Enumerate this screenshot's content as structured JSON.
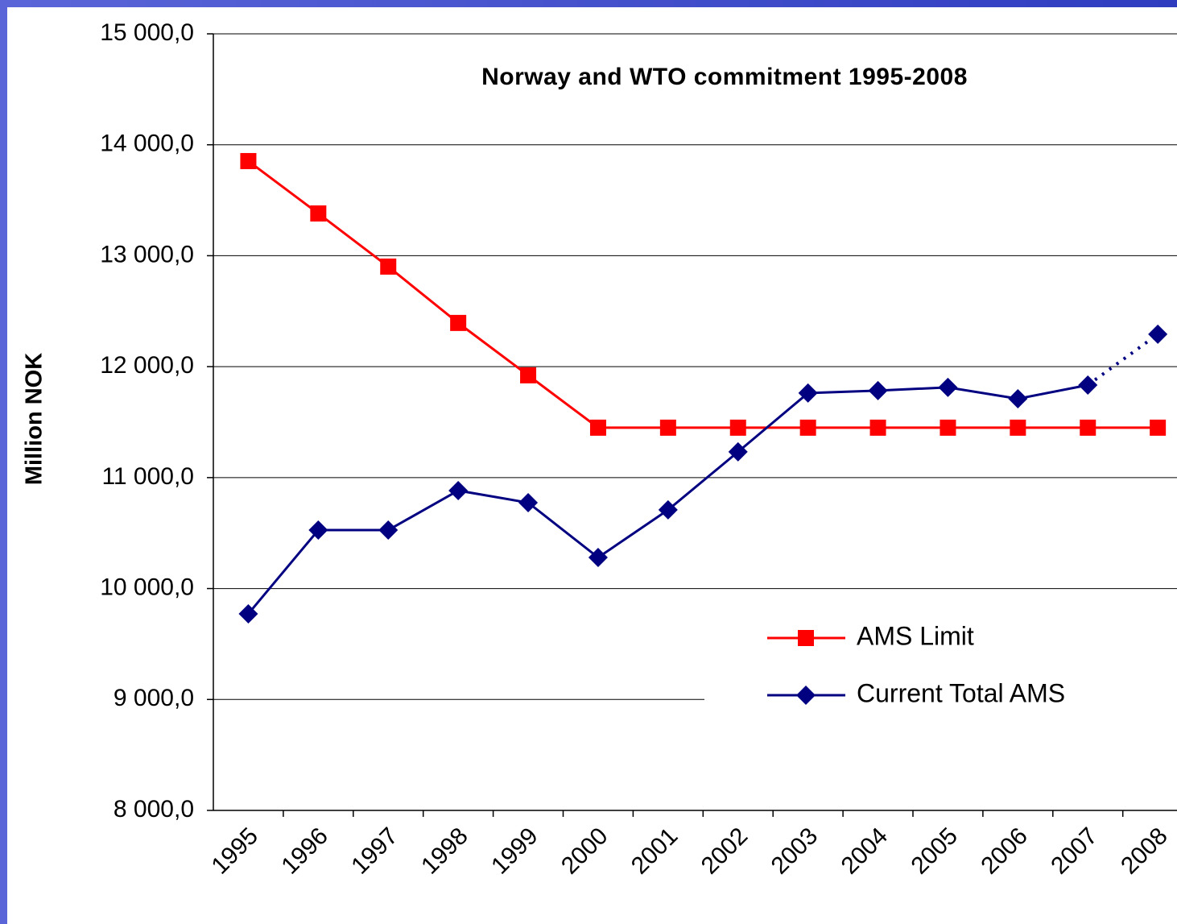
{
  "chart_data": {
    "type": "line",
    "title": "Norway and WTO commitment 1995-2008",
    "y_label": "Million NOK",
    "categories": [
      "1995",
      "1996",
      "1997",
      "1998",
      "1999",
      "2000",
      "2001",
      "2002",
      "2003",
      "2004",
      "2005",
      "2006",
      "2007",
      "2008"
    ],
    "series": [
      {
        "name": "AMS Limit",
        "color": "#ff0000",
        "marker": "square",
        "values": [
          13853,
          13381,
          12902,
          12394,
          11922,
          11450,
          11450,
          11450,
          11450,
          11450,
          11450,
          11450,
          11450,
          11450
        ]
      },
      {
        "name": "Current Total AMS",
        "color": "#000080",
        "marker": "diamond",
        "dotted_last_segment": true,
        "values": [
          9772,
          10527,
          10527,
          10883,
          10774,
          10280,
          10709,
          11232,
          11762,
          11784,
          11813,
          11711,
          11834,
          12292
        ]
      }
    ],
    "ylim": [
      8000,
      15000
    ],
    "yticks": [
      {
        "value": 8000,
        "label": "8 000,0"
      },
      {
        "value": 9000,
        "label": "9 000,0"
      },
      {
        "value": 10000,
        "label": "10 000,0"
      },
      {
        "value": 11000,
        "label": "11 000,0"
      },
      {
        "value": 12000,
        "label": "12 000,0"
      },
      {
        "value": 13000,
        "label": "13 000,0"
      },
      {
        "value": 14000,
        "label": "14 000,0"
      },
      {
        "value": 15000,
        "label": "15 000,0"
      }
    ],
    "grid": true,
    "legend": "lower right"
  }
}
